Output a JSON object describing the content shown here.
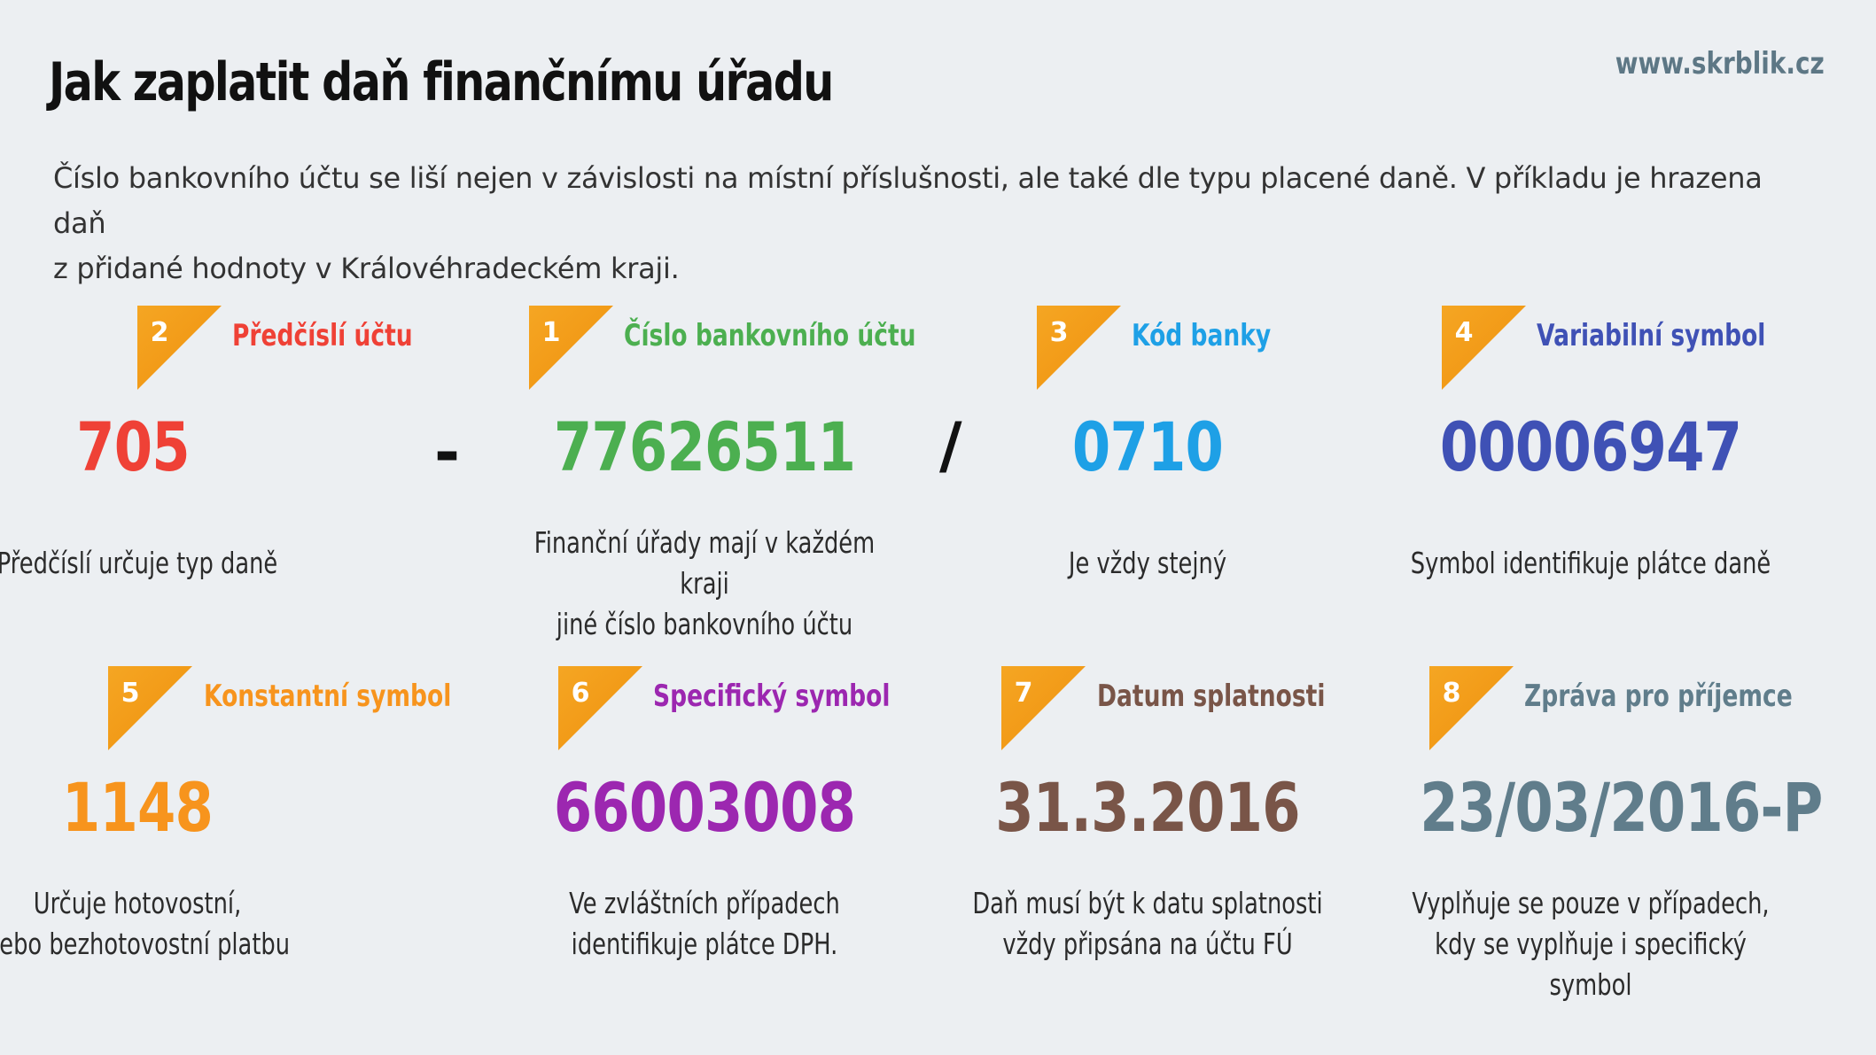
{
  "title": "Jak zaplatit daň finančnímu úřadu",
  "site": "www.skrblik.cz",
  "intro": {
    "line1": "Číslo bankovního účtu se liší nejen v závislosti na místní příslušnosti, ale také dle typu placené daně. V příkladu je hrazena daň",
    "line2": "z přidané hodnoty v Královéhradeckém kraji."
  },
  "separators": {
    "dash": "-",
    "slash": "/"
  },
  "colors": {
    "badge": "#f29a17",
    "predcisli": "#ef4136",
    "cislo_uctu": "#4caf50",
    "kod_banky": "#1ea0e6",
    "variabilni": "#3f51b5",
    "konstantni": "#f7941d",
    "specificky": "#9c27b0",
    "datum": "#795548",
    "zprava": "#607d8b"
  },
  "cards": [
    {
      "num": "2",
      "label": "Předčíslí účtu",
      "value": "705",
      "desc1": "Předčíslí určuje typ daně",
      "desc2": ""
    },
    {
      "num": "1",
      "label": "Číslo bankovního účtu",
      "value": "77626511",
      "desc1": "Finanční úřady mají v každém kraji",
      "desc2": "jiné číslo bankovního účtu"
    },
    {
      "num": "3",
      "label": "Kód banky",
      "value": "0710",
      "desc1": "Je vždy stejný",
      "desc2": ""
    },
    {
      "num": "4",
      "label": "Variabilní symbol",
      "value": "00006947",
      "desc1": "Symbol identifikuje plátce daně",
      "desc2": ""
    },
    {
      "num": "5",
      "label": "Konstantní symbol",
      "value": "1148",
      "desc1": "Určuje hotovostní,",
      "desc2": "nebo bezhotovostní platbu"
    },
    {
      "num": "6",
      "label": "Specifický symbol",
      "value": "66003008",
      "desc1": "Ve zvláštních případech",
      "desc2": "identifikuje plátce DPH."
    },
    {
      "num": "7",
      "label": "Datum splatnosti",
      "value": "31.3.2016",
      "desc1": "Daň musí být k datu splatnosti",
      "desc2": "vždy připsána na účtu FÚ"
    },
    {
      "num": "8",
      "label": "Zpráva pro příjemce",
      "value": "23/03/2016-P",
      "desc1": "Vyplňuje se pouze v případech,",
      "desc2": "kdy se vyplňuje i specifický symbol"
    }
  ]
}
